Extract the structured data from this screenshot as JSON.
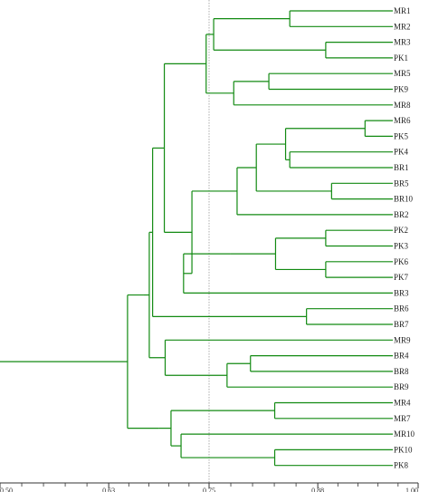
{
  "colors": {
    "branch": "#128a12",
    "axis": "#333333",
    "reference_line": "#9a9a9a",
    "label": "#222222",
    "background": "#ffffff"
  },
  "axis": {
    "ticks": [
      {
        "value": 0.5,
        "label": "0.50"
      },
      {
        "value": 0.63,
        "label": "0.63"
      },
      {
        "value": 0.75,
        "label": "0.75"
      },
      {
        "value": 0.88,
        "label": "0.88"
      },
      {
        "value": 1.0,
        "label": "1.00"
      }
    ],
    "minor_divisions": 5
  },
  "reference_line": {
    "value": 0.75
  },
  "leaves": [
    "MR1",
    "MR2",
    "MR3",
    "PK1",
    "MR5",
    "PK9",
    "MR8",
    "MR6",
    "PK5",
    "PK4",
    "BR1",
    "BR5",
    "BR10",
    "BR2",
    "PK2",
    "PK3",
    "PK6",
    "PK7",
    "BR3",
    "BR6",
    "BR7",
    "MR9",
    "BR4",
    "BR8",
    "BR9",
    "MR4",
    "MR7",
    "MR10",
    "PK10",
    "PK8"
  ],
  "tree": {
    "h": 0.6525,
    "c": [
      {
        "h": 0.6715,
        "c": [
          {
            "h": 0.6785,
            "c": [
              {
                "h": 0.6825,
                "c": [
                  {
                    "h": 0.6965,
                    "c": [
                      {
                        "h": 0.7465,
                        "c": [
                          {
                            "h": 0.7555,
                            "c": [
                              {
                                "h": 0.8465,
                                "c": [
                                  0,
                                  1
                                ]
                              },
                              {
                                "h": 0.8895,
                                "c": [
                                  2,
                                  3
                                ]
                              }
                            ]
                          },
                          {
                            "h": 0.7795,
                            "c": [
                              {
                                "h": 0.8215,
                                "c": [
                                  4,
                                  5
                                ]
                              },
                              6
                            ]
                          }
                        ]
                      },
                      {
                        "h": 0.7295,
                        "c": [
                          {
                            "h": 0.7835,
                            "c": [
                              {
                                "h": 0.8065,
                                "c": [
                                  {
                                    "h": 0.8415,
                                    "c": [
                                      {
                                        "h": 0.9365,
                                        "c": [
                                          7,
                                          8
                                        ]
                                      },
                                      {
                                        "h": 0.8465,
                                        "c": [
                                          9,
                                          10
                                        ]
                                      }
                                    ]
                                  },
                                  {
                                    "h": 0.8965,
                                    "c": [
                                      11,
                                      12
                                    ]
                                  }
                                ]
                              },
                              13
                            ]
                          },
                          {
                            "h": 0.7195,
                            "c": [
                              {
                                "h": 0.7755,
                                "c": [
                                  {
                                    "h": 0.8295,
                                    "c": [
                                      {
                                        "h": 0.8895,
                                        "c": [
                                          14,
                                          15
                                        ]
                                      },
                                      {
                                        "h": 0.8895,
                                        "c": [
                                          16,
                                          17
                                        ]
                                      }
                                    ]
                                  }
                                ]
                              },
                              18
                            ]
                          }
                        ]
                      }
                    ]
                  },
                  {
                    "h": 0.8665,
                    "c": [
                      19,
                      20
                    ]
                  }
                ]
              },
              {
                "h": 0.6975,
                "c": [
                  21,
                  {
                    "h": 0.7715,
                    "c": [
                      {
                        "h": 0.7995,
                        "c": [
                          22,
                          23
                        ]
                      },
                      24
                    ]
                  }
                ]
              }
            ]
          }
        ]
      },
      {
        "h": 0.6895,
        "c": [
          {
            "h": 0.7045,
            "c": [
              {
                "h": 0.8285,
                "c": [
                  25,
                  26
                ]
              },
              {
                "h": 0.7165,
                "c": [
                  27,
                  {
                    "h": 0.8285,
                    "c": [
                      28,
                      29
                    ]
                  }
                ]
              }
            ]
          }
        ]
      }
    ]
  }
}
